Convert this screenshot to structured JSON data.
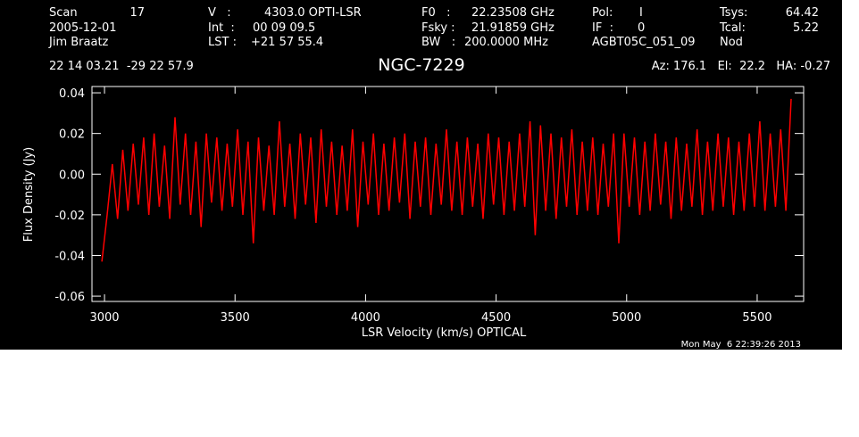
{
  "header": [
    [
      "Scan",
      "17",
      "V   :",
      "4303.0 OPTI-LSR",
      "F0   :",
      "22.23508 GHz",
      "Pol:",
      "I",
      "Tsys:",
      "64.42"
    ],
    [
      "2005-12-01",
      "Int  :",
      "00 09 09.5",
      "Fsky :",
      "21.91859 GHz",
      "IF  :",
      "0",
      "Tcal:",
      "5.22"
    ],
    [
      "Jim Braatz",
      "LST :",
      "+21 57 55.4",
      "BW   :",
      "200.0000 MHz",
      "AGBT05C_051_09",
      "Nod"
    ]
  ],
  "coordinates": "22 14 03.21  -29 22 57.9",
  "pointing": "Az: 176.1   El:  22.2   HA: -0.27",
  "timestamp": "Mon May  6 22:39:26 2013",
  "chart_data": {
    "type": "line",
    "title": "NGC-7229",
    "x_label": "LSR Velocity (km/s) OPTICAL",
    "y_label": "Flux Density (Jy)",
    "xlim": [
      2952,
      5678
    ],
    "ylim": [
      -0.0626,
      0.0431
    ],
    "xticks": [
      3000,
      3500,
      4000,
      4500,
      5000,
      5500
    ],
    "yticks": [
      -0.06,
      -0.04,
      -0.02,
      {
        "value": 0,
        "label": "0.00"
      },
      0.02,
      0.04
    ],
    "color": "#ff0000",
    "x": [
      2990,
      3010,
      3030,
      3050,
      3070,
      3090,
      3110,
      3130,
      3150,
      3170,
      3190,
      3210,
      3230,
      3250,
      3270,
      3290,
      3310,
      3330,
      3350,
      3370,
      3390,
      3410,
      3430,
      3450,
      3470,
      3490,
      3510,
      3530,
      3550,
      3570,
      3590,
      3610,
      3630,
      3650,
      3670,
      3690,
      3710,
      3730,
      3750,
      3770,
      3790,
      3810,
      3830,
      3850,
      3870,
      3890,
      3910,
      3930,
      3950,
      3970,
      3990,
      4010,
      4030,
      4050,
      4070,
      4090,
      4110,
      4130,
      4150,
      4170,
      4190,
      4210,
      4230,
      4250,
      4270,
      4290,
      4310,
      4330,
      4350,
      4370,
      4390,
      4410,
      4430,
      4450,
      4470,
      4490,
      4510,
      4530,
      4550,
      4570,
      4590,
      4610,
      4630,
      4650,
      4670,
      4690,
      4710,
      4730,
      4750,
      4770,
      4790,
      4810,
      4830,
      4850,
      4870,
      4890,
      4910,
      4930,
      4950,
      4970,
      4990,
      5010,
      5030,
      5050,
      5070,
      5090,
      5110,
      5130,
      5150,
      5170,
      5190,
      5210,
      5230,
      5250,
      5270,
      5290,
      5310,
      5330,
      5350,
      5370,
      5390,
      5410,
      5430,
      5450,
      5470,
      5490,
      5510,
      5530,
      5550,
      5570,
      5590,
      5610,
      5630
    ],
    "values": [
      -0.043,
      -0.02,
      0.005,
      -0.022,
      0.012,
      -0.018,
      0.015,
      -0.015,
      0.018,
      -0.02,
      0.02,
      -0.016,
      0.014,
      -0.022,
      0.028,
      -0.015,
      0.02,
      -0.02,
      0.016,
      -0.026,
      0.02,
      -0.014,
      0.018,
      -0.018,
      0.015,
      -0.016,
      0.022,
      -0.02,
      0.016,
      -0.034,
      0.018,
      -0.018,
      0.014,
      -0.02,
      0.026,
      -0.016,
      0.015,
      -0.022,
      0.02,
      -0.015,
      0.018,
      -0.024,
      0.022,
      -0.016,
      0.016,
      -0.02,
      0.014,
      -0.018,
      0.022,
      -0.026,
      0.016,
      -0.015,
      0.02,
      -0.02,
      0.015,
      -0.018,
      0.018,
      -0.014,
      0.02,
      -0.022,
      0.016,
      -0.016,
      0.018,
      -0.02,
      0.015,
      -0.015,
      0.022,
      -0.018,
      0.016,
      -0.02,
      0.018,
      -0.016,
      0.015,
      -0.022,
      0.02,
      -0.015,
      0.018,
      -0.02,
      0.016,
      -0.018,
      0.02,
      -0.016,
      0.026,
      -0.03,
      0.024,
      -0.018,
      0.02,
      -0.022,
      0.018,
      -0.016,
      0.022,
      -0.02,
      0.016,
      -0.018,
      0.018,
      -0.02,
      0.015,
      -0.016,
      0.02,
      -0.034,
      0.02,
      -0.016,
      0.018,
      -0.02,
      0.016,
      -0.018,
      0.02,
      -0.015,
      0.016,
      -0.022,
      0.018,
      -0.018,
      0.015,
      -0.016,
      0.022,
      -0.02,
      0.016,
      -0.018,
      0.02,
      -0.016,
      0.018,
      -0.02,
      0.016,
      -0.018,
      0.02,
      -0.016,
      0.026,
      -0.018,
      0.02,
      -0.016,
      0.022,
      -0.018,
      0.037
    ]
  }
}
